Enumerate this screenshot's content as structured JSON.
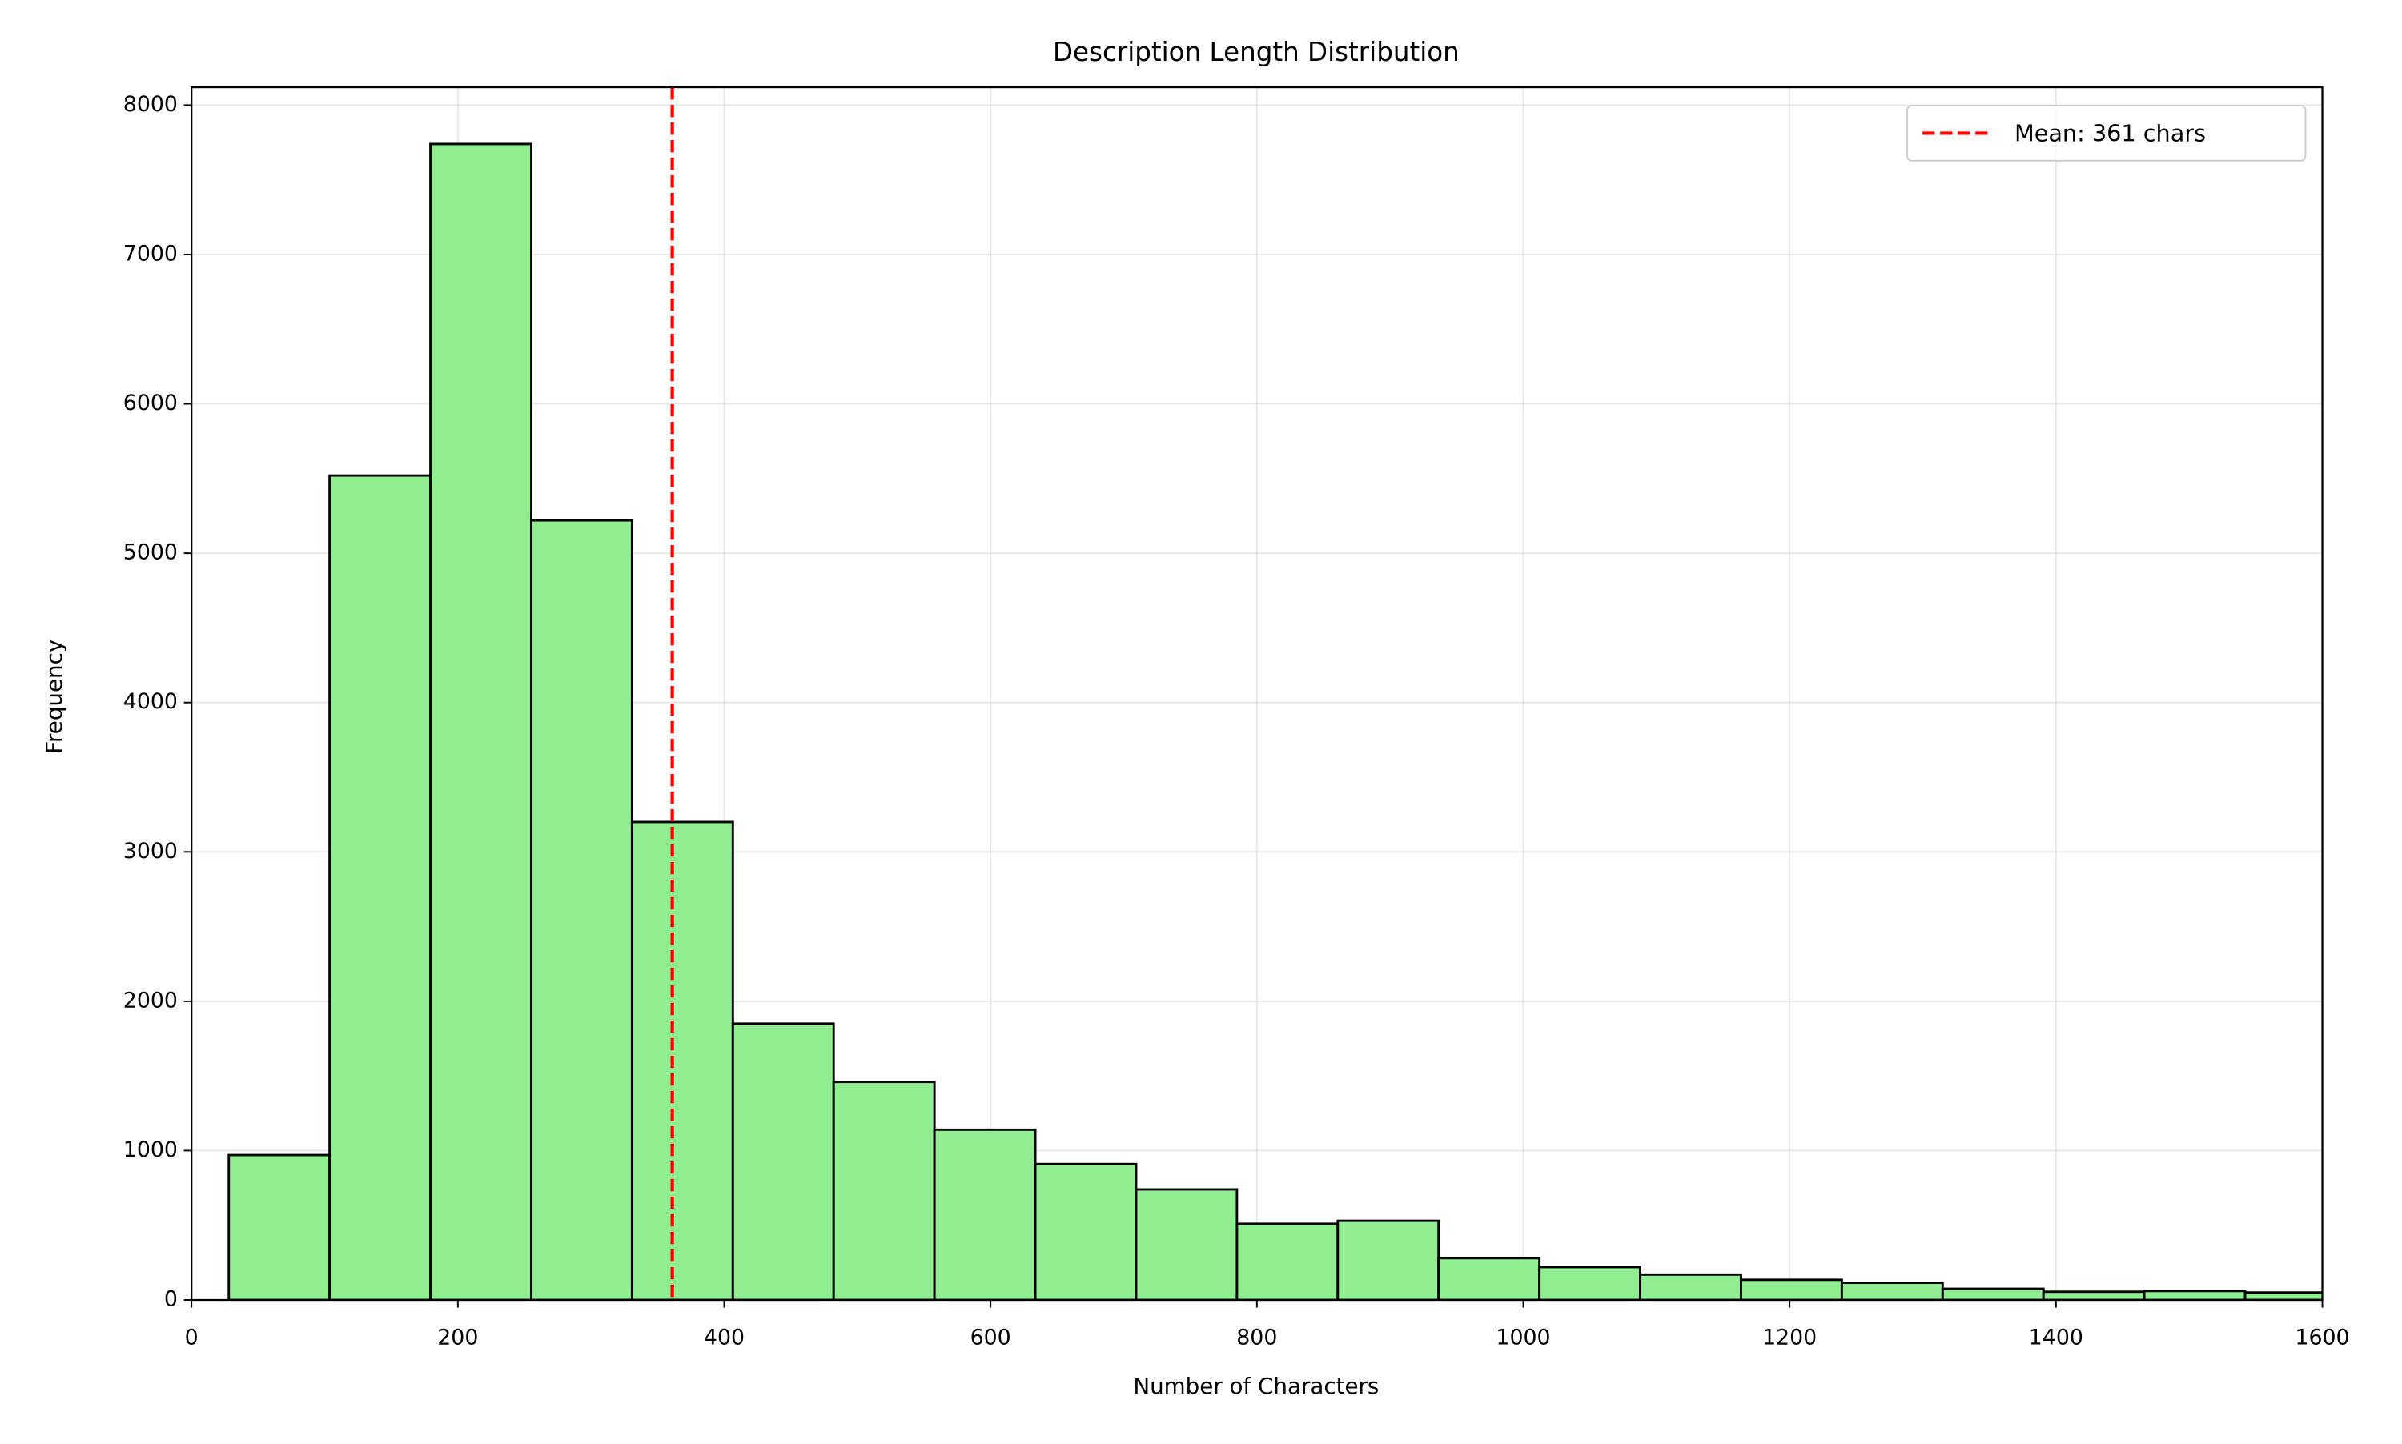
{
  "chart_data": {
    "type": "histogram",
    "title": "Description Length Distribution",
    "x_label": "Number of Characters",
    "y_label": "Frequency",
    "bins": [
      28,
      103.7,
      179.4,
      255.1,
      330.8,
      406.5,
      482.2,
      557.9,
      633.6,
      709.3,
      785,
      860.7,
      936.4,
      1012.1,
      1087.8,
      1163.5,
      1239.2,
      1314.9,
      1390.6,
      1466.3,
      1542,
      1617.7
    ],
    "values": [
      970,
      5520,
      7740,
      5220,
      3200,
      1850,
      1460,
      1140,
      910,
      740,
      510,
      530,
      280,
      220,
      170,
      135,
      115,
      75,
      55,
      60,
      50
    ],
    "color": "#90ee90",
    "edgecolor": "#000000",
    "xlim": [
      0,
      1600
    ],
    "xticks": [
      0,
      200,
      400,
      600,
      800,
      1000,
      1200,
      1400,
      1600
    ],
    "ylim": [
      0,
      8120
    ],
    "yticks": [
      0,
      1000,
      2000,
      3000,
      4000,
      5000,
      6000,
      7000,
      8000
    ],
    "grid": true,
    "legend_loc": "upper right",
    "mean_line": {
      "value": 361,
      "label": "Mean: 361 chars",
      "color": "#ff0000"
    }
  }
}
